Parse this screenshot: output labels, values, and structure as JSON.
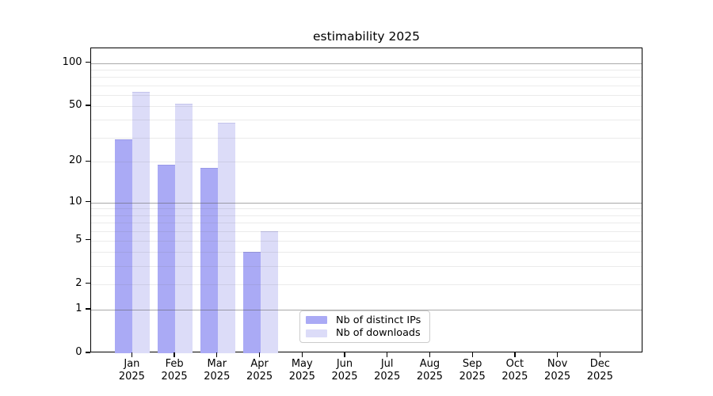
{
  "title": "estimability 2025",
  "chart_data": {
    "type": "bar",
    "title": "estimability 2025",
    "x_months": [
      "Jan",
      "Feb",
      "Mar",
      "Apr",
      "May",
      "Jun",
      "Jul",
      "Aug",
      "Sep",
      "Oct",
      "Nov",
      "Dec"
    ],
    "x_year": "2025",
    "series": [
      {
        "name": "Nb of distinct IPs",
        "color": "#aaaaf5",
        "values": [
          29,
          19,
          18,
          4,
          0,
          0,
          0,
          0,
          0,
          0,
          0,
          0
        ]
      },
      {
        "name": "Nb of downloads",
        "color": "#dcdcf8",
        "values": [
          63,
          52,
          38,
          6,
          0,
          0,
          0,
          0,
          0,
          0,
          0,
          0
        ]
      }
    ],
    "y_scale": "log1p",
    "y_ticks": [
      0,
      1,
      2,
      5,
      10,
      20,
      50,
      100
    ],
    "y_major_gridlines": [
      1,
      10,
      100
    ],
    "y_minor_gridlines": [
      2,
      3,
      4,
      5,
      6,
      7,
      8,
      9,
      20,
      30,
      40,
      50,
      60,
      70,
      80,
      90
    ],
    "ylim": [
      0,
      127
    ],
    "grid": "on",
    "legend": {
      "position": "lower center",
      "entries": [
        "Nb of distinct IPs",
        "Nb of downloads"
      ]
    }
  }
}
